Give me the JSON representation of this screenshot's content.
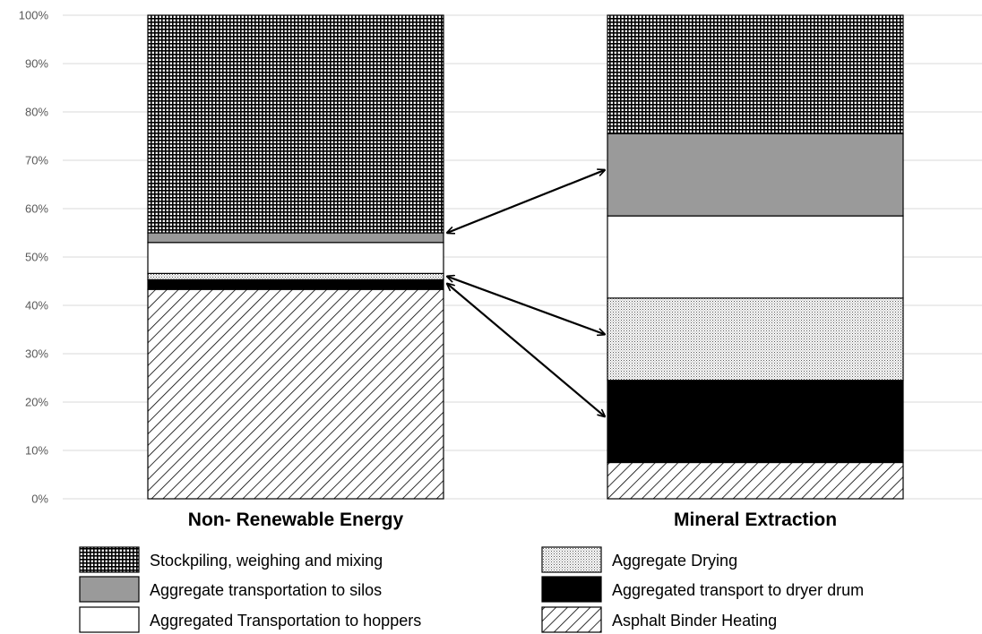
{
  "chart_data": {
    "type": "bar",
    "stacked": true,
    "percent": true,
    "categories": [
      "Non- Renewable Energy",
      "Mineral Extraction"
    ],
    "y_ticks": [
      "0%",
      "10%",
      "20%",
      "30%",
      "40%",
      "50%",
      "60%",
      "70%",
      "80%",
      "90%",
      "100%"
    ],
    "ylim": [
      0,
      100
    ],
    "grid": true,
    "legend_position": "bottom",
    "series": [
      {
        "name": "Asphalt Binder Heating",
        "pattern": "diagonal-hatch",
        "values": [
          43.3,
          7.5
        ]
      },
      {
        "name": "Aggregated  transport to dryer drum",
        "pattern": "solid-black",
        "values": [
          2.0,
          17.0
        ]
      },
      {
        "name": "Aggregate Drying",
        "pattern": "fine-dots",
        "values": [
          1.3,
          17.0
        ]
      },
      {
        "name": "Aggregated Transportation to hoppers",
        "pattern": "white",
        "values": [
          6.4,
          17.0
        ]
      },
      {
        "name": "Aggregate transportation to silos",
        "pattern": "gray",
        "values": [
          2.0,
          17.0
        ]
      },
      {
        "name": "Stockpiling, weighing and mixing",
        "pattern": "dense-grid",
        "values": [
          45.0,
          24.5
        ]
      }
    ],
    "legend_order": [
      "Stockpiling, weighing and mixing",
      "Aggregate Drying",
      "Aggregate transportation to silos",
      "Aggregated  transport to dryer drum",
      "Aggregated Transportation to hoppers",
      "Asphalt Binder Heating"
    ],
    "annotations": [
      {
        "type": "double-arrow",
        "from": {
          "category": "Non- Renewable Energy",
          "y": 55
        },
        "to": {
          "category": "Mineral Extraction",
          "y": 68
        }
      },
      {
        "type": "double-arrow",
        "from": {
          "category": "Non- Renewable Energy",
          "y": 46
        },
        "to": {
          "category": "Mineral Extraction",
          "y": 34
        }
      },
      {
        "type": "double-arrow",
        "from": {
          "category": "Non- Renewable Energy",
          "y": 44.5
        },
        "to": {
          "category": "Mineral Extraction",
          "y": 17
        }
      }
    ]
  },
  "colors": {
    "gray_fill": "#9a9a9a",
    "black_fill": "#000000",
    "white_fill": "#ffffff",
    "gridline": "#d9d9d9"
  }
}
